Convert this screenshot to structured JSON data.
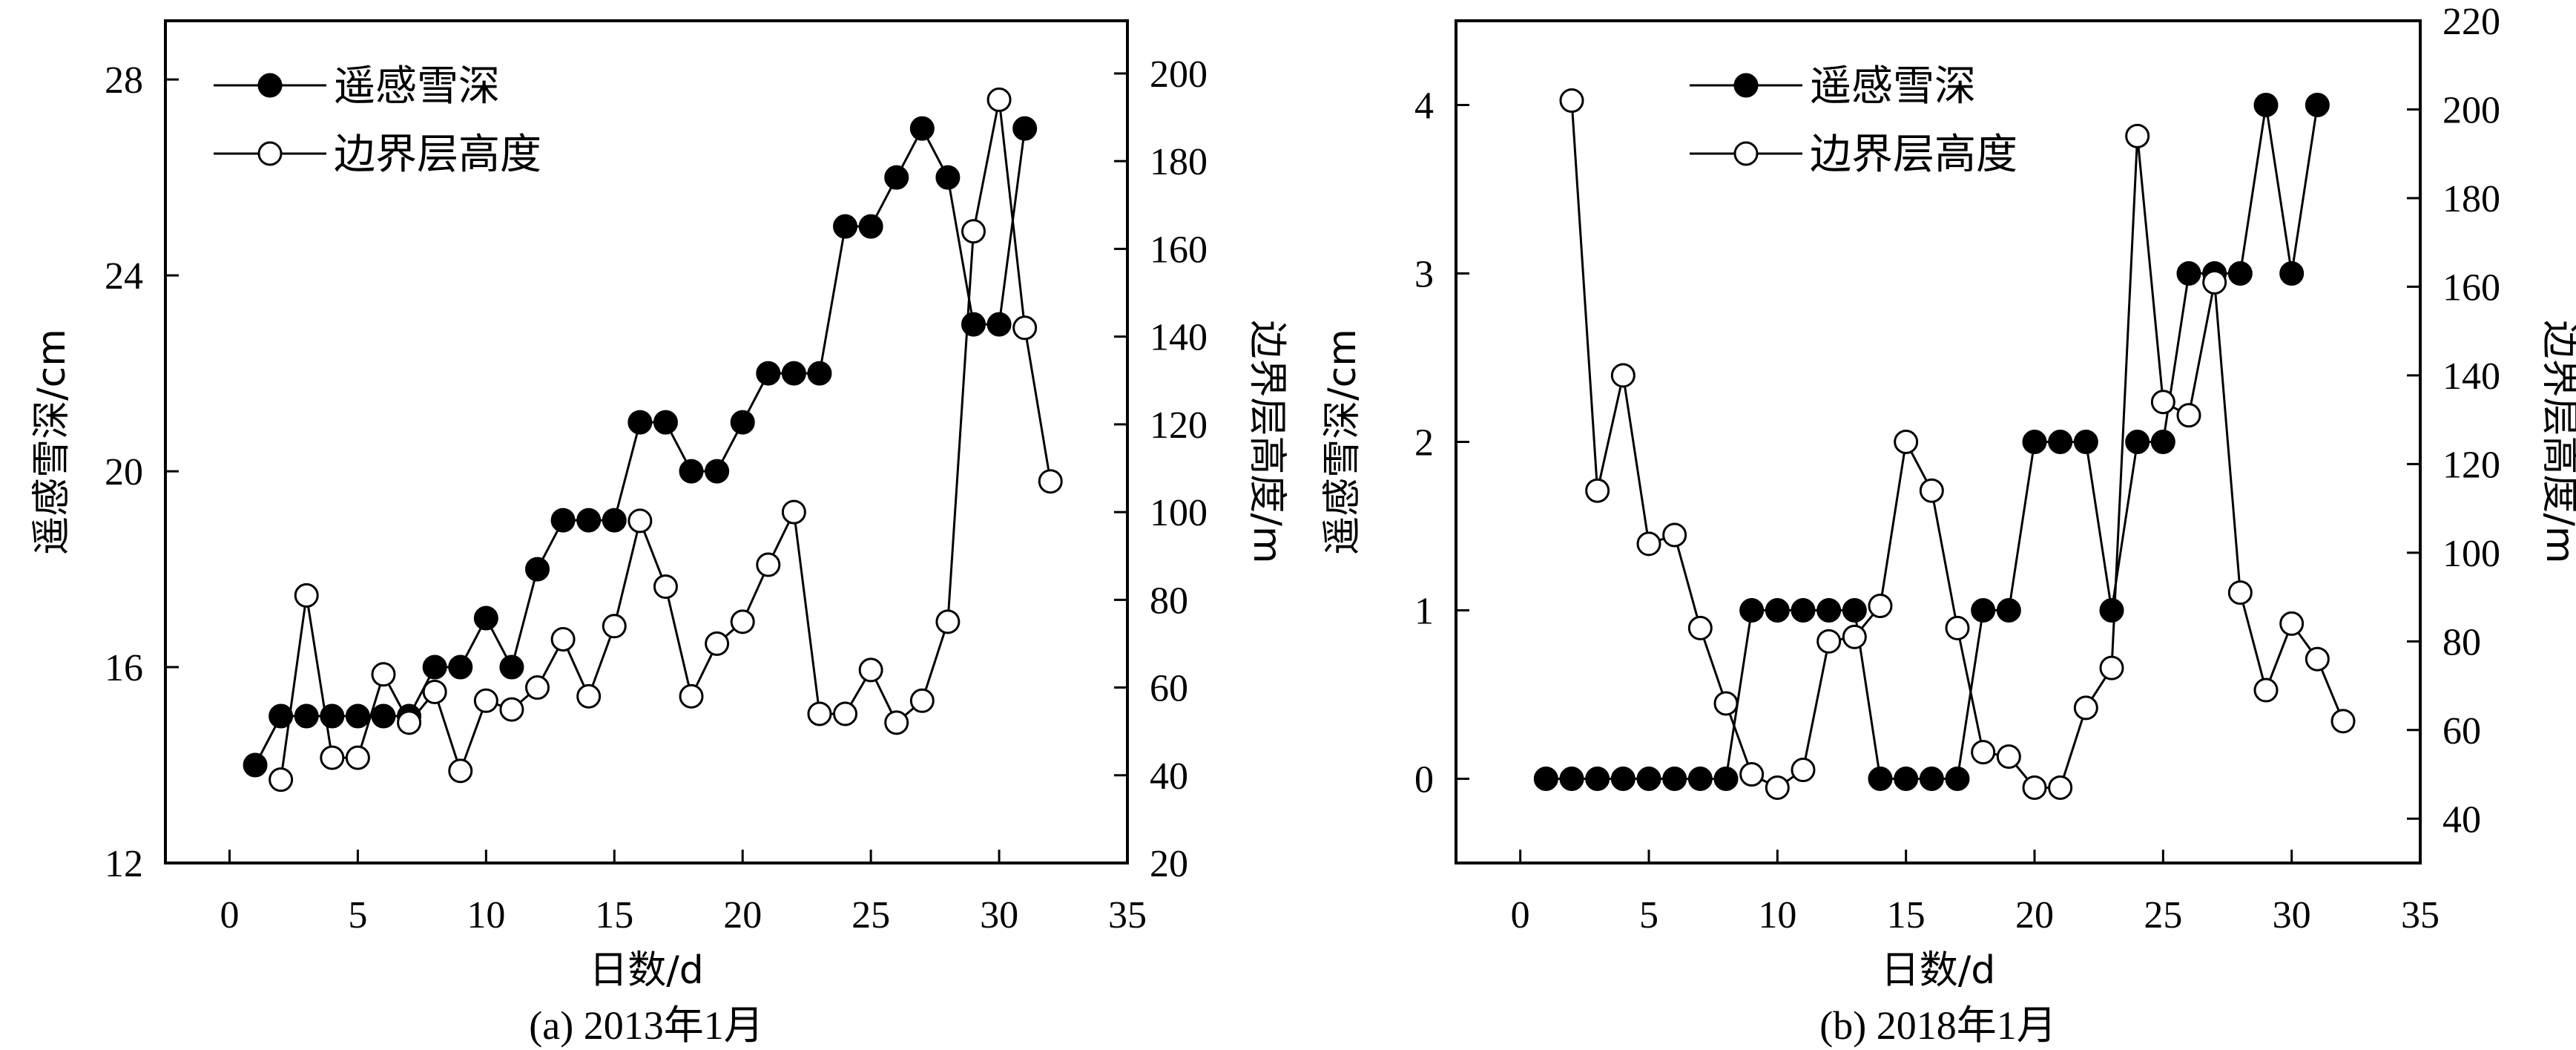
{
  "chart_data": [
    {
      "type": "line",
      "caption": "(a) 2013年1月",
      "xlabel": "日数/d",
      "ylabel": "遥感雪深/cm",
      "y2label": "边界层高度/m",
      "xlim": [
        -2.5,
        35
      ],
      "xticks": [
        0,
        5,
        10,
        15,
        20,
        25,
        30,
        35
      ],
      "ylim": [
        12,
        29.2
      ],
      "yticks": [
        12,
        16,
        20,
        24,
        28
      ],
      "y2lim": [
        20,
        212
      ],
      "y2ticks": [
        20,
        40,
        60,
        80,
        100,
        120,
        140,
        160,
        180,
        200
      ],
      "legend": "top-left",
      "grid": false,
      "series": [
        {
          "name": "遥感雪深",
          "axis": "left",
          "marker": "filled-circle",
          "x": [
            1,
            2,
            3,
            4,
            5,
            6,
            7,
            8,
            9,
            10,
            11,
            12,
            13,
            14,
            15,
            16,
            17,
            18,
            19,
            20,
            21,
            22,
            23,
            24,
            25,
            26,
            27,
            28,
            29,
            30,
            31
          ],
          "values": [
            14,
            15,
            15,
            15,
            15,
            15,
            15,
            16,
            16,
            17,
            16,
            18,
            19,
            19,
            19,
            21,
            21,
            20,
            20,
            21,
            22,
            22,
            22,
            25,
            25,
            26,
            27,
            26,
            23,
            23,
            27
          ]
        },
        {
          "name": "边界层高度",
          "axis": "right",
          "marker": "open-circle",
          "x": [
            2,
            3,
            4,
            5,
            6,
            7,
            8,
            9,
            10,
            11,
            12,
            13,
            14,
            15,
            16,
            17,
            18,
            19,
            20,
            21,
            22,
            23,
            24,
            25,
            26,
            27,
            28,
            29,
            30,
            31,
            32
          ],
          "values": [
            39,
            81,
            44,
            44,
            63,
            52,
            59,
            41,
            57,
            55,
            60,
            71,
            58,
            74,
            98,
            83,
            58,
            70,
            75,
            88,
            100,
            54,
            54,
            64,
            52,
            57,
            75,
            164,
            194,
            142,
            107
          ]
        }
      ]
    },
    {
      "type": "line",
      "caption": "(b) 2018年1月",
      "xlabel": "日数/d",
      "ylabel": "遥感雪深/cm",
      "y2label": "边界层高度/m",
      "xlim": [
        -2.5,
        35
      ],
      "xticks": [
        0,
        5,
        10,
        15,
        20,
        25,
        30,
        35
      ],
      "ylim": [
        -0.5,
        4.5
      ],
      "yticks": [
        0,
        1,
        2,
        3,
        4
      ],
      "y2lim": [
        30,
        220
      ],
      "y2ticks": [
        40,
        60,
        80,
        100,
        120,
        140,
        160,
        180,
        200,
        220
      ],
      "legend": "top-center",
      "grid": false,
      "series": [
        {
          "name": "遥感雪深",
          "axis": "left",
          "marker": "filled-circle",
          "x": [
            1,
            2,
            3,
            4,
            5,
            6,
            7,
            8,
            9,
            10,
            11,
            12,
            13,
            14,
            15,
            16,
            17,
            18,
            19,
            20,
            21,
            22,
            23,
            24,
            25,
            26,
            27,
            28,
            29,
            30,
            31
          ],
          "values": [
            0,
            0,
            0,
            0,
            0,
            0,
            0,
            0,
            1,
            1,
            1,
            1,
            1,
            0,
            0,
            0,
            0,
            1,
            1,
            2,
            2,
            2,
            1,
            2,
            2,
            3,
            3,
            3,
            4,
            3,
            4
          ]
        },
        {
          "name": "边界层高度",
          "axis": "right",
          "marker": "open-circle",
          "x": [
            2,
            3,
            4,
            5,
            6,
            7,
            8,
            9,
            10,
            11,
            12,
            13,
            14,
            15,
            16,
            17,
            18,
            19,
            20,
            21,
            22,
            23,
            24,
            25,
            26,
            27,
            28,
            29,
            30,
            31,
            32
          ],
          "values": [
            202,
            114,
            140,
            102,
            104,
            83,
            66,
            50,
            47,
            51,
            80,
            81,
            88,
            125,
            114,
            83,
            55,
            54,
            47,
            47,
            65,
            74,
            194,
            134,
            131,
            161,
            91,
            69,
            84,
            76,
            62
          ]
        }
      ]
    }
  ]
}
